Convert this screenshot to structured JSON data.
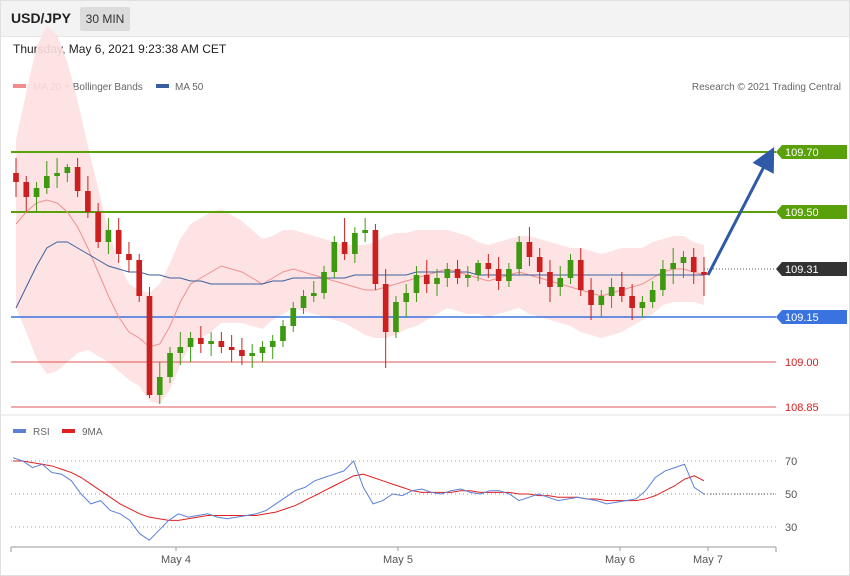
{
  "header": {
    "symbol": "USD/JPY",
    "timeframe": "30 MIN",
    "datetime": "Thursday, May 6, 2021 9:23:38 AM CET"
  },
  "legend": {
    "ma20_label": "MA 20 + Bollinger Bands",
    "ma50_label": "MA 50",
    "copyright": "Research © 2021 Trading Central",
    "rsi_label": "RSI",
    "rsi_ma_label": "9MA"
  },
  "colors": {
    "resistance": "#5aa00a",
    "support": "#3a73e0",
    "current": "#333333",
    "target_low": "#d62020",
    "candle_up": "#3d9a10",
    "candle_down": "#cc2020",
    "ma20": "#f09090",
    "ma50": "#3a5fa0",
    "bands": "#fde0e0",
    "rsi": "#5b80d8",
    "rsi_ma": "#e02020",
    "arrow": "#2e5aa8"
  },
  "chart_data": [
    {
      "type": "candlestick",
      "series_labels": [
        "MA 20 + Bollinger Bands",
        "MA 50"
      ],
      "x_ticks": [
        "May 4",
        "May 5",
        "May 6",
        "May 7"
      ],
      "levels": [
        {
          "kind": "resistance",
          "value": 109.7,
          "label": "109.70"
        },
        {
          "kind": "resistance",
          "value": 109.5,
          "label": "109.50"
        },
        {
          "kind": "current",
          "value": 109.31,
          "label": "109.31"
        },
        {
          "kind": "support",
          "value": 109.15,
          "label": "109.15"
        },
        {
          "kind": "support-minor",
          "value": 109.0,
          "label": "109.00"
        },
        {
          "kind": "support-minor",
          "value": 108.85,
          "label": "108.85"
        }
      ],
      "forecast_target": 109.7,
      "ohlc": [
        [
          109.63,
          109.68,
          109.55,
          109.6
        ],
        [
          109.6,
          109.62,
          109.5,
          109.55
        ],
        [
          109.55,
          109.6,
          109.5,
          109.58
        ],
        [
          109.58,
          109.67,
          109.56,
          109.62
        ],
        [
          109.62,
          109.68,
          109.58,
          109.63
        ],
        [
          109.63,
          109.66,
          109.6,
          109.65
        ],
        [
          109.65,
          109.68,
          109.55,
          109.57
        ],
        [
          109.57,
          109.62,
          109.48,
          109.5
        ],
        [
          109.5,
          109.53,
          109.38,
          109.4
        ],
        [
          109.4,
          109.48,
          109.36,
          109.44
        ],
        [
          109.44,
          109.48,
          109.33,
          109.36
        ],
        [
          109.36,
          109.4,
          109.3,
          109.34
        ],
        [
          109.34,
          109.36,
          109.2,
          109.22
        ],
        [
          109.22,
          109.25,
          108.88,
          108.89
        ],
        [
          108.89,
          109.0,
          108.86,
          108.95
        ],
        [
          108.95,
          109.05,
          108.93,
          109.03
        ],
        [
          109.03,
          109.1,
          108.99,
          109.05
        ],
        [
          109.05,
          109.1,
          109.0,
          109.08
        ],
        [
          109.08,
          109.12,
          109.03,
          109.06
        ],
        [
          109.06,
          109.1,
          109.02,
          109.07
        ],
        [
          109.07,
          109.1,
          109.03,
          109.05
        ],
        [
          109.05,
          109.09,
          109.0,
          109.04
        ],
        [
          109.04,
          109.08,
          108.99,
          109.02
        ],
        [
          109.02,
          109.06,
          108.98,
          109.03
        ],
        [
          109.03,
          109.07,
          109.0,
          109.05
        ],
        [
          109.05,
          109.09,
          109.01,
          109.07
        ],
        [
          109.07,
          109.14,
          109.05,
          109.12
        ],
        [
          109.12,
          109.2,
          109.1,
          109.18
        ],
        [
          109.18,
          109.24,
          109.16,
          109.22
        ],
        [
          109.22,
          109.27,
          109.2,
          109.23
        ],
        [
          109.23,
          109.32,
          109.21,
          109.3
        ],
        [
          109.3,
          109.42,
          109.28,
          109.4
        ],
        [
          109.4,
          109.48,
          109.34,
          109.36
        ],
        [
          109.36,
          109.45,
          109.33,
          109.43
        ],
        [
          109.43,
          109.48,
          109.4,
          109.44
        ],
        [
          109.44,
          109.46,
          109.24,
          109.26
        ],
        [
          109.26,
          109.31,
          108.98,
          109.1
        ],
        [
          109.1,
          109.22,
          109.08,
          109.2
        ],
        [
          109.2,
          109.26,
          109.15,
          109.23
        ],
        [
          109.23,
          109.32,
          109.2,
          109.29
        ],
        [
          109.29,
          109.34,
          109.23,
          109.26
        ],
        [
          109.26,
          109.31,
          109.22,
          109.28
        ],
        [
          109.28,
          109.33,
          109.25,
          109.31
        ],
        [
          109.31,
          109.34,
          109.26,
          109.28
        ],
        [
          109.28,
          109.32,
          109.25,
          109.29
        ],
        [
          109.29,
          109.34,
          109.27,
          109.33
        ],
        [
          109.33,
          109.36,
          109.28,
          109.31
        ],
        [
          109.31,
          109.35,
          109.24,
          109.27
        ],
        [
          109.27,
          109.33,
          109.25,
          109.31
        ],
        [
          109.31,
          109.42,
          109.29,
          109.4
        ],
        [
          109.4,
          109.45,
          109.32,
          109.35
        ],
        [
          109.35,
          109.38,
          109.26,
          109.3
        ],
        [
          109.3,
          109.34,
          109.2,
          109.25
        ],
        [
          109.25,
          109.32,
          109.22,
          109.28
        ],
        [
          109.28,
          109.36,
          109.26,
          109.34
        ],
        [
          109.34,
          109.38,
          109.22,
          109.24
        ],
        [
          109.24,
          109.28,
          109.14,
          109.19
        ],
        [
          109.19,
          109.24,
          109.15,
          109.22
        ],
        [
          109.22,
          109.28,
          109.18,
          109.25
        ],
        [
          109.25,
          109.3,
          109.2,
          109.22
        ],
        [
          109.22,
          109.26,
          109.14,
          109.18
        ],
        [
          109.18,
          109.22,
          109.15,
          109.2
        ],
        [
          109.2,
          109.27,
          109.18,
          109.24
        ],
        [
          109.24,
          109.34,
          109.22,
          109.31
        ],
        [
          109.31,
          109.38,
          109.26,
          109.33
        ],
        [
          109.33,
          109.37,
          109.28,
          109.35
        ],
        [
          109.35,
          109.38,
          109.26,
          109.3
        ],
        [
          109.3,
          109.35,
          109.22,
          109.29
        ]
      ],
      "ma20": [
        109.46,
        109.5,
        109.53,
        109.54,
        109.53,
        109.5,
        109.45,
        109.38,
        109.3,
        109.22,
        109.15,
        109.1,
        109.08,
        109.05,
        109.06,
        109.12,
        109.2,
        109.26,
        109.28,
        109.3,
        109.32,
        109.31,
        109.3,
        109.28,
        109.26,
        109.28,
        109.3,
        109.31,
        109.3,
        109.29,
        109.28,
        109.27,
        109.26,
        109.25,
        109.24,
        109.24,
        109.25,
        109.26,
        109.27,
        109.28,
        109.29,
        109.3,
        109.31,
        109.3,
        109.29,
        109.28,
        109.27,
        109.28,
        109.29,
        109.3,
        109.29,
        109.28,
        109.27,
        109.26,
        109.25,
        109.24,
        109.23,
        109.22,
        109.23,
        109.24,
        109.25,
        109.26,
        109.28,
        109.3,
        109.31,
        109.31,
        109.3,
        109.29
      ],
      "ma50": [
        109.18,
        109.25,
        109.32,
        109.38,
        109.4,
        109.4,
        109.38,
        109.36,
        109.34,
        109.32,
        109.31,
        109.3,
        109.3,
        109.29,
        109.29,
        109.28,
        109.28,
        109.27,
        109.27,
        109.26,
        109.26,
        109.26,
        109.26,
        109.26,
        109.26,
        109.27,
        109.27,
        109.28,
        109.28,
        109.28,
        109.28,
        109.28,
        109.28,
        109.29,
        109.29,
        109.29,
        109.29,
        109.29,
        109.29,
        109.3,
        109.3,
        109.3,
        109.3,
        109.3,
        109.3,
        109.29,
        109.29,
        109.29,
        109.29,
        109.29,
        109.29,
        109.29,
        109.29,
        109.29,
        109.29,
        109.29,
        109.29,
        109.29,
        109.29,
        109.29,
        109.29,
        109.29,
        109.29,
        109.29,
        109.29,
        109.29,
        109.29,
        109.29
      ],
      "bollinger_width": [
        0.28,
        0.4,
        0.52,
        0.58,
        0.56,
        0.5,
        0.42,
        0.34,
        0.28,
        0.22,
        0.18,
        0.16,
        0.16,
        0.18,
        0.2,
        0.21,
        0.21,
        0.2,
        0.2,
        0.2,
        0.19,
        0.18,
        0.17,
        0.16,
        0.15,
        0.14,
        0.14,
        0.13,
        0.13,
        0.13,
        0.13,
        0.13,
        0.13,
        0.14,
        0.15,
        0.16,
        0.17,
        0.17,
        0.16,
        0.16,
        0.15,
        0.14,
        0.13,
        0.13,
        0.13,
        0.12,
        0.12,
        0.12,
        0.12,
        0.12,
        0.13,
        0.13,
        0.13,
        0.13,
        0.13,
        0.14,
        0.14,
        0.14,
        0.14,
        0.14,
        0.13,
        0.12,
        0.12,
        0.11,
        0.11,
        0.11,
        0.1,
        0.1
      ]
    },
    {
      "type": "line",
      "series_labels": [
        "RSI",
        "9MA"
      ],
      "y_ticks": [
        70,
        50,
        30
      ],
      "rsi_current": 50,
      "rsi": [
        72,
        70,
        66,
        68,
        63,
        62,
        58,
        50,
        44,
        46,
        40,
        38,
        34,
        26,
        22,
        28,
        34,
        38,
        36,
        37,
        38,
        36,
        35,
        36,
        37,
        38,
        40,
        44,
        48,
        52,
        54,
        58,
        60,
        62,
        64,
        70,
        54,
        44,
        46,
        50,
        49,
        52,
        53,
        51,
        50,
        52,
        53,
        51,
        50,
        52,
        52,
        50,
        46,
        48,
        50,
        48,
        46,
        47,
        48,
        47,
        46,
        44,
        45,
        46,
        47,
        52,
        60,
        64,
        66,
        68,
        54,
        50
      ],
      "rsi_ma": [
        70,
        70,
        69,
        68,
        67,
        65,
        63,
        60,
        56,
        52,
        48,
        44,
        41,
        38,
        36,
        35,
        34,
        34,
        35,
        36,
        37,
        37,
        37,
        37,
        37,
        37,
        38,
        39,
        41,
        43,
        46,
        49,
        52,
        55,
        58,
        61,
        62,
        60,
        58,
        56,
        54,
        52,
        51,
        51,
        51,
        51,
        52,
        52,
        51,
        51,
        51,
        51,
        50,
        50,
        49,
        49,
        48,
        48,
        48,
        47,
        47,
        46,
        46,
        46,
        46,
        47,
        49,
        52,
        55,
        59,
        61,
        58
      ]
    }
  ]
}
